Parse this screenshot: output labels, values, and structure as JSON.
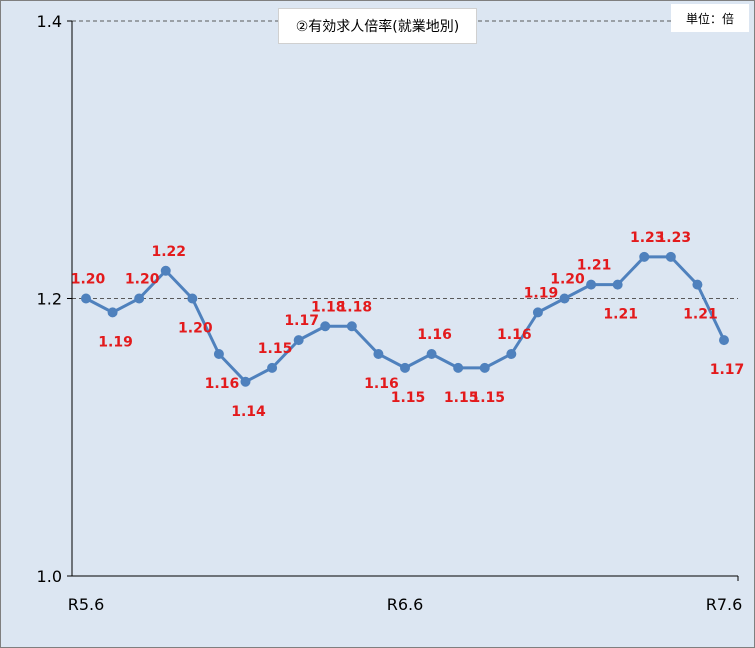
{
  "chart_data": {
    "type": "line",
    "title": "②有効求人倍率(就業地別)",
    "unit_note": "単位：倍",
    "xlabel": "",
    "ylabel": "",
    "ylim": [
      1.0,
      1.4
    ],
    "y_ticks": [
      "1.0",
      "1.2",
      "1.4"
    ],
    "reference_lines": [
      1.2,
      1.4
    ],
    "x_tick_labels": [
      {
        "index": 0,
        "label": "R5.6"
      },
      {
        "index": 12,
        "label": "R6.6"
      },
      {
        "index": 24,
        "label": "R7.6"
      }
    ],
    "series": [
      {
        "color": "#4f81bd",
        "values": [
          1.2,
          1.19,
          1.2,
          1.22,
          1.2,
          1.16,
          1.14,
          1.15,
          1.17,
          1.18,
          1.18,
          1.16,
          1.15,
          1.16,
          1.15,
          1.15,
          1.16,
          1.19,
          1.2,
          1.21,
          1.21,
          1.23,
          1.23,
          1.21,
          1.17
        ],
        "labels": [
          "1.20",
          "1.19",
          "1.20",
          "1.22",
          "1.20",
          "1.16",
          "1.14",
          "1.15",
          "1.17",
          "1.18",
          "1.18",
          "1.16",
          "1.15",
          "1.16",
          "1.15",
          "1.15",
          "1.16",
          "1.19",
          "1.20",
          "1.21",
          "1.21",
          "1.23",
          "1.23",
          "1.21",
          "1.17"
        ]
      }
    ],
    "label_color": "#e31a1c",
    "background_color": "#dce6f2"
  }
}
